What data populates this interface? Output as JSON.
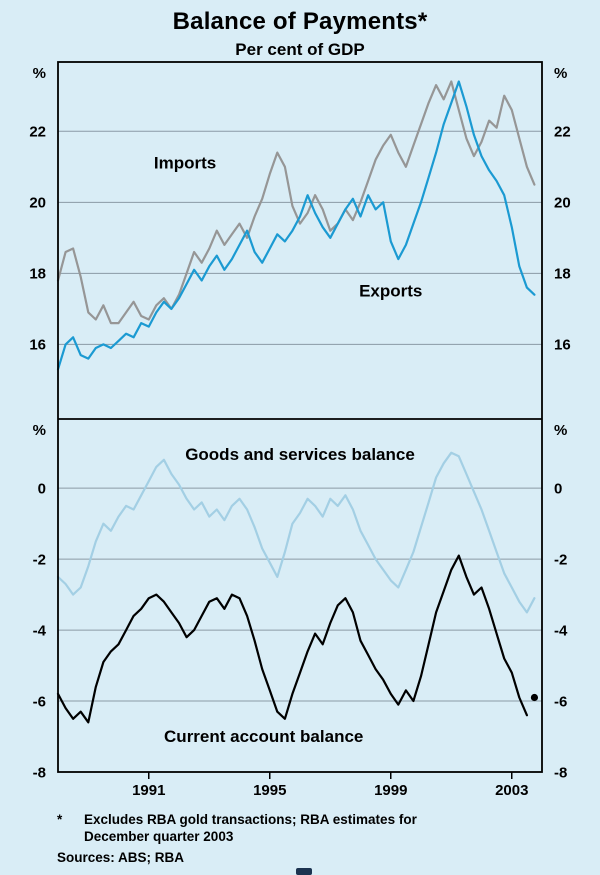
{
  "header": {
    "title": "Balance of Payments*",
    "subtitle": "Per cent of GDP"
  },
  "footnote": {
    "marker": "*",
    "text": "Excludes RBA gold transactions; RBA estimates for December quarter 2003",
    "sources": "Sources: ABS; RBA"
  },
  "colors": {
    "background": "#d9edf6",
    "grid": "#8a9aa5",
    "axis": "#000000",
    "imports": "#969696",
    "exports": "#1b9ad2",
    "goods_services": "#a3cfe4",
    "current_account": "#000000"
  },
  "chart_data": {
    "type": "line",
    "title": "Balance of Payments*",
    "subtitle": "Per cent of GDP",
    "x": {
      "start": 1988.0,
      "step": 0.25,
      "count": 64,
      "unit": "quarterly"
    },
    "xlim": [
      1988,
      2004
    ],
    "xticks": [
      1991,
      1995,
      1999,
      2003
    ],
    "grid": true,
    "legend_position": "in-chart-labels",
    "panels": [
      {
        "name": "imports-exports",
        "unit": "%",
        "ylim": [
          13.9,
          23.95
        ],
        "yticks": [
          22,
          20,
          18,
          16
        ],
        "series": [
          {
            "name": "Imports",
            "color": "imports",
            "label": {
              "text": "Imports",
              "x": 1992.2,
              "y": 20.95
            },
            "values": [
              17.8,
              18.6,
              18.7,
              17.9,
              16.9,
              16.7,
              17.1,
              16.6,
              16.6,
              16.9,
              17.2,
              16.8,
              16.7,
              17.1,
              17.3,
              17.0,
              17.4,
              18.0,
              18.6,
              18.3,
              18.7,
              19.2,
              18.8,
              19.1,
              19.4,
              19.0,
              19.6,
              20.1,
              20.8,
              21.4,
              21.0,
              19.9,
              19.4,
              19.7,
              20.2,
              19.8,
              19.2,
              19.4,
              19.8,
              19.5,
              20.0,
              20.6,
              21.2,
              21.6,
              21.9,
              21.4,
              21.0,
              21.6,
              22.2,
              22.8,
              23.3,
              22.9,
              23.4,
              22.6,
              21.8,
              21.3,
              21.7,
              22.3,
              22.1,
              23.0,
              22.6,
              21.8,
              21.0,
              20.5
            ]
          },
          {
            "name": "Exports",
            "color": "exports",
            "label": {
              "text": "Exports",
              "x": 1999.0,
              "y": 17.35
            },
            "values": [
              15.3,
              16.0,
              16.2,
              15.7,
              15.6,
              15.9,
              16.0,
              15.9,
              16.1,
              16.3,
              16.2,
              16.6,
              16.5,
              16.9,
              17.2,
              17.0,
              17.3,
              17.7,
              18.1,
              17.8,
              18.2,
              18.5,
              18.1,
              18.4,
              18.8,
              19.2,
              18.6,
              18.3,
              18.7,
              19.1,
              18.9,
              19.2,
              19.6,
              20.2,
              19.7,
              19.3,
              19.0,
              19.4,
              19.8,
              20.1,
              19.6,
              20.2,
              19.8,
              20.0,
              18.9,
              18.4,
              18.8,
              19.4,
              20.0,
              20.7,
              21.4,
              22.2,
              22.8,
              23.4,
              22.7,
              21.9,
              21.3,
              20.9,
              20.6,
              20.2,
              19.3,
              18.2,
              17.6,
              17.4
            ]
          }
        ]
      },
      {
        "name": "balances",
        "unit": "%",
        "ylim": [
          -8,
          1.95
        ],
        "yticks": [
          0,
          -2,
          -4,
          -6,
          -8
        ],
        "series": [
          {
            "name": "Goods and services balance",
            "color": "goods_services",
            "label": {
              "text": "Goods and services balance",
              "x": 1996.0,
              "y": 0.8
            },
            "values": [
              -2.5,
              -2.7,
              -3.0,
              -2.8,
              -2.2,
              -1.5,
              -1.0,
              -1.2,
              -0.8,
              -0.5,
              -0.6,
              -0.2,
              0.2,
              0.6,
              0.8,
              0.4,
              0.1,
              -0.3,
              -0.6,
              -0.4,
              -0.8,
              -0.6,
              -0.9,
              -0.5,
              -0.3,
              -0.6,
              -1.1,
              -1.7,
              -2.1,
              -2.5,
              -1.8,
              -1.0,
              -0.7,
              -0.3,
              -0.5,
              -0.8,
              -0.3,
              -0.5,
              -0.2,
              -0.6,
              -1.2,
              -1.6,
              -2.0,
              -2.3,
              -2.6,
              -2.8,
              -2.3,
              -1.8,
              -1.1,
              -0.4,
              0.3,
              0.7,
              1.0,
              0.9,
              0.4,
              -0.1,
              -0.6,
              -1.2,
              -1.8,
              -2.4,
              -2.8,
              -3.2,
              -3.5,
              -3.1
            ]
          },
          {
            "name": "Current account balance",
            "color": "current_account",
            "end_marker": true,
            "label": {
              "text": "Current account balance",
              "x": 1994.8,
              "y": -7.15
            },
            "values": [
              -5.8,
              -6.2,
              -6.5,
              -6.3,
              -6.6,
              -5.6,
              -4.9,
              -4.6,
              -4.4,
              -4.0,
              -3.6,
              -3.4,
              -3.1,
              -3.0,
              -3.2,
              -3.5,
              -3.8,
              -4.2,
              -4.0,
              -3.6,
              -3.2,
              -3.1,
              -3.4,
              -3.0,
              -3.1,
              -3.6,
              -4.3,
              -5.1,
              -5.7,
              -6.3,
              -6.5,
              -5.8,
              -5.2,
              -4.6,
              -4.1,
              -4.4,
              -3.8,
              -3.3,
              -3.1,
              -3.5,
              -4.3,
              -4.7,
              -5.1,
              -5.4,
              -5.8,
              -6.1,
              -5.7,
              -6.0,
              -5.3,
              -4.4,
              -3.5,
              -2.9,
              -2.3,
              -1.9,
              -2.5,
              -3.0,
              -2.8,
              -3.4,
              -4.1,
              -4.8,
              -5.2,
              -5.9,
              -6.4,
              -5.9
            ]
          }
        ]
      }
    ]
  }
}
